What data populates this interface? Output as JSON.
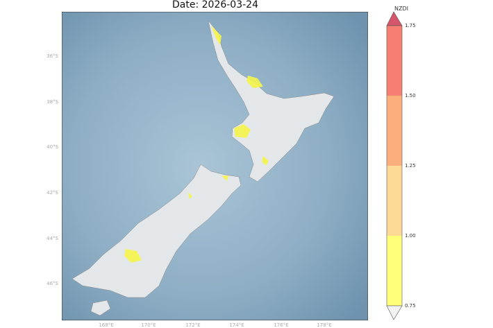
{
  "title": "Date: 2026-03-24",
  "lat_ticks": [
    "36°S",
    "38°S",
    "40°S",
    "42°S",
    "44°S",
    "46°S"
  ],
  "lon_ticks": [
    "168°E",
    "170°E",
    "172°E",
    "174°E",
    "176°E",
    "178°E"
  ],
  "colorbar": {
    "label": "NZDI",
    "ticks": [
      "1.75",
      "1.50",
      "1.25",
      "1.00",
      "0.75"
    ],
    "colors": [
      "#f47f72",
      "#fcaf7c",
      "#fed995",
      "#ffff78"
    ],
    "over_color": "#d5566a",
    "under_color": "#f2f2f2"
  },
  "colors": {
    "ocean": "#8fb0c7",
    "land": "#e4e7ea",
    "drought": "#f5f54a"
  }
}
